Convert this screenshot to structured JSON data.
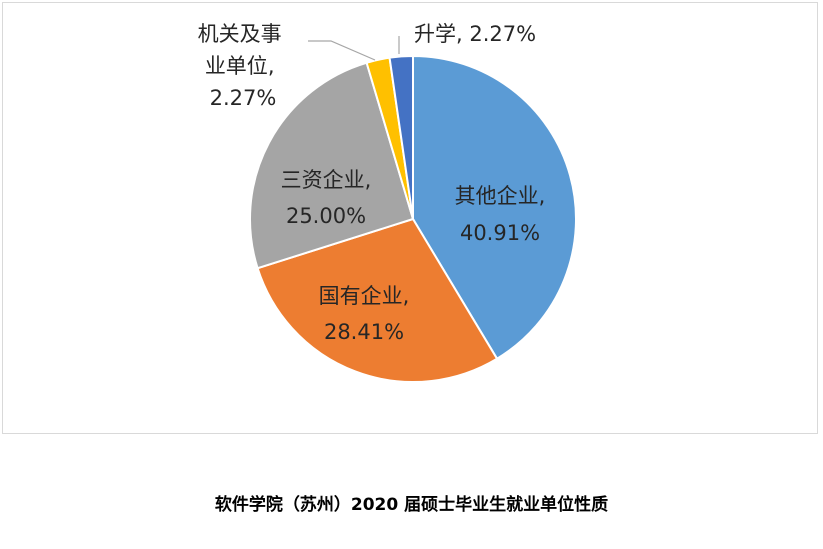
{
  "caption": "软件学院（苏州）2020 届硕士毕业生就业单位性质",
  "chart_data": {
    "type": "pie",
    "title": "",
    "slices": [
      {
        "name": "其他企业",
        "value": 40.91,
        "label": "40.91%",
        "color": "#5b9bd5"
      },
      {
        "name": "国有企业",
        "value": 28.41,
        "label": "28.41%",
        "color": "#ed7d31"
      },
      {
        "name": "三资企业",
        "value": 25.0,
        "label": "25.00%",
        "color": "#a5a5a5"
      },
      {
        "name": "机关及事业单位",
        "value": 2.27,
        "label": "2.27%",
        "color": "#ffc000"
      },
      {
        "name": "升学",
        "value": 2.27,
        "label": "2.27%",
        "color": "#4472c4"
      }
    ],
    "start_angle": "12 o'clock",
    "direction": "clockwise",
    "legend": "none",
    "data_labels": "category name and percentage"
  }
}
